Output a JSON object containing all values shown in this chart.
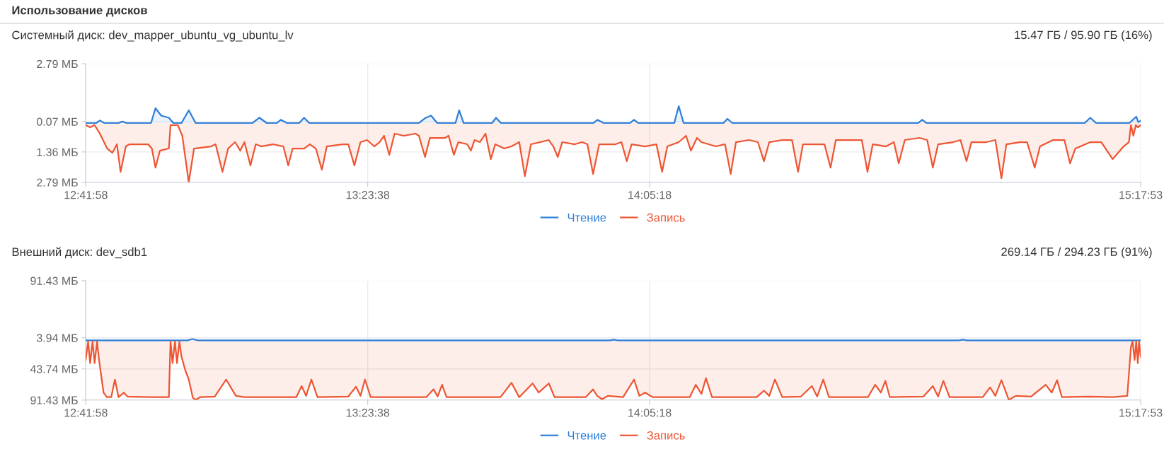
{
  "chart_data": [
    {
      "type": "area",
      "title": "Системный диск: dev_mapper_ubuntu_vg_ubuntu_lv",
      "subtitle": "15.47 ГБ / 95.90 ГБ (16%)",
      "annotations": [
        "Использование дисков"
      ],
      "xlim": [
        12.699,
        15.2981
      ],
      "xticks": [
        {
          "value": 12.6994,
          "label": "12:41:58"
        },
        {
          "value": 13.3939,
          "label": "13:23:38"
        },
        {
          "value": 14.0883,
          "label": "14:05:18"
        },
        {
          "value": 15.2981,
          "label": "15:17:53"
        }
      ],
      "ylim": [
        -2.79,
        2.79
      ],
      "yticks": [
        {
          "value": 2.79,
          "label": "2.79 МБ"
        },
        {
          "value": 0.07,
          "label": "0.07 МБ"
        },
        {
          "value": -1.36,
          "label": "1.36 МБ"
        },
        {
          "value": -2.79,
          "label": "2.79 МБ"
        }
      ],
      "grid": true,
      "legend": "bottom",
      "series": [
        {
          "name": "Чтение",
          "color": "#2f7ed8",
          "x": [
            12.699,
            12.725,
            12.734,
            12.745,
            12.78,
            12.789,
            12.8,
            12.86,
            12.871,
            12.885,
            12.904,
            12.915,
            12.935,
            12.953,
            12.97,
            13.11,
            13.127,
            13.145,
            13.17,
            13.18,
            13.195,
            13.225,
            13.237,
            13.25,
            13.52,
            13.537,
            13.55,
            13.565,
            13.61,
            13.619,
            13.63,
            13.7,
            13.71,
            13.722,
            13.95,
            13.96,
            13.975,
            14.04,
            14.05,
            14.06,
            14.149,
            14.16,
            14.172,
            14.27,
            14.28,
            14.292,
            14.75,
            14.76,
            14.77,
            15.16,
            15.174,
            15.188,
            15.27,
            15.287,
            15.292,
            15.298
          ],
          "values": [
            0,
            0,
            0.12,
            0,
            0,
            0.07,
            0,
            0,
            0.7,
            0.35,
            0.25,
            0,
            0,
            0.6,
            0,
            0,
            0.25,
            0,
            0,
            0.15,
            0,
            0,
            0.25,
            0,
            0,
            0.25,
            0.35,
            0,
            0,
            0.6,
            0,
            0,
            0.25,
            0,
            0,
            0.15,
            0,
            0,
            0.15,
            0,
            0,
            0.8,
            0,
            0,
            0.2,
            0,
            0,
            0.15,
            0,
            0,
            0.25,
            0,
            0,
            0.3,
            0.05,
            0.1
          ]
        },
        {
          "name": "Запись",
          "color": "#ee5533",
          "x": [
            12.699,
            12.71,
            12.721,
            12.734,
            12.752,
            12.765,
            12.776,
            12.785,
            12.798,
            12.807,
            12.853,
            12.862,
            12.871,
            12.882,
            12.904,
            12.908,
            12.926,
            12.937,
            12.953,
            12.966,
            13.008,
            13.019,
            13.036,
            13.05,
            13.067,
            13.08,
            13.09,
            13.105,
            13.118,
            13.131,
            13.16,
            13.186,
            13.198,
            13.209,
            13.237,
            13.251,
            13.266,
            13.281,
            13.293,
            13.332,
            13.346,
            13.361,
            13.376,
            13.392,
            13.41,
            13.423,
            13.434,
            13.447,
            13.46,
            13.483,
            13.511,
            13.52,
            13.535,
            13.547,
            13.584,
            13.593,
            13.606,
            13.617,
            13.639,
            13.648,
            13.657,
            13.67,
            13.684,
            13.697,
            13.708,
            13.73,
            13.748,
            13.767,
            13.781,
            13.796,
            13.84,
            13.851,
            13.862,
            13.873,
            13.904,
            13.922,
            13.935,
            13.949,
            13.964,
            14.004,
            14.019,
            14.032,
            14.044,
            14.077,
            14.105,
            14.119,
            14.132,
            14.16,
            14.178,
            14.19,
            14.205,
            14.216,
            14.251,
            14.274,
            14.288,
            14.301,
            14.333,
            14.355,
            14.37,
            14.383,
            14.415,
            14.439,
            14.454,
            14.466,
            14.498,
            14.519,
            14.534,
            14.547,
            14.579,
            14.611,
            14.625,
            14.638,
            14.671,
            14.69,
            14.702,
            14.717,
            14.753,
            14.772,
            14.786,
            14.799,
            14.836,
            14.854,
            14.869,
            14.881,
            14.918,
            14.94,
            14.955,
            14.967,
            15.0,
            15.018,
            15.037,
            15.05,
            15.082,
            15.11,
            15.124,
            15.137,
            15.174,
            15.201,
            15.229,
            15.256,
            15.269,
            15.274,
            15.28,
            15.286,
            15.291,
            15.298
          ],
          "values": [
            -0.1,
            -0.2,
            -0.1,
            -0.5,
            -1.2,
            -1.4,
            -1.0,
            -2.3,
            -1.1,
            -1.0,
            -1.0,
            -1.2,
            -2.1,
            -1.3,
            -1.2,
            -0.1,
            -0.1,
            -0.6,
            -2.79,
            -1.2,
            -1.1,
            -1.0,
            -2.3,
            -1.2,
            -0.9,
            -1.3,
            -0.9,
            -2.0,
            -1.0,
            -1.1,
            -1.0,
            -1.1,
            -2.0,
            -1.2,
            -1.2,
            -1.0,
            -1.2,
            -2.2,
            -1.1,
            -1.0,
            -1.0,
            -2.0,
            -0.9,
            -0.8,
            -1.1,
            -0.9,
            -0.6,
            -1.5,
            -0.5,
            -0.6,
            -0.5,
            -0.6,
            -1.6,
            -0.7,
            -0.7,
            -0.6,
            -1.5,
            -0.9,
            -1.0,
            -1.3,
            -0.8,
            -0.9,
            -0.5,
            -1.7,
            -1.0,
            -1.2,
            -1.1,
            -0.9,
            -2.5,
            -1.0,
            -0.8,
            -1.1,
            -1.6,
            -0.9,
            -1.0,
            -0.9,
            -1.0,
            -2.4,
            -1.0,
            -1.0,
            -0.9,
            -1.8,
            -1.0,
            -1.1,
            -1.0,
            -2.3,
            -1.1,
            -0.9,
            -0.6,
            -1.3,
            -0.7,
            -0.9,
            -1.1,
            -1.0,
            -2.4,
            -0.9,
            -0.8,
            -0.9,
            -1.8,
            -0.9,
            -0.8,
            -0.8,
            -2.3,
            -1.0,
            -1.0,
            -1.0,
            -2.1,
            -0.8,
            -0.8,
            -0.8,
            -2.3,
            -1.0,
            -1.1,
            -0.9,
            -1.9,
            -0.8,
            -0.7,
            -0.8,
            -2.1,
            -1.0,
            -0.9,
            -0.8,
            -1.8,
            -0.9,
            -0.9,
            -0.8,
            -2.6,
            -1.0,
            -0.9,
            -0.9,
            -2.1,
            -1.1,
            -0.8,
            -0.8,
            -1.9,
            -1.2,
            -0.9,
            -0.9,
            -1.7,
            -1.1,
            -0.9,
            -0.1,
            -0.6,
            -0.1,
            -0.2,
            -0.1
          ]
        }
      ]
    },
    {
      "type": "area",
      "title": "Внешний диск: dev_sdb1",
      "subtitle": "269.14 ГБ / 294.23 ГБ (91%)",
      "xlim": [
        12.699,
        15.2981
      ],
      "xticks": [
        {
          "value": 12.6994,
          "label": "12:41:58"
        },
        {
          "value": 13.3939,
          "label": "13:23:38"
        },
        {
          "value": 14.0883,
          "label": "14:05:18"
        },
        {
          "value": 15.2981,
          "label": "15:17:53"
        }
      ],
      "ylim": [
        -91.43,
        91.43
      ],
      "yticks": [
        {
          "value": 91.43,
          "label": "91.43 МБ"
        },
        {
          "value": 3.94,
          "label": "3.94 МБ"
        },
        {
          "value": -43.74,
          "label": "43.74 МБ"
        },
        {
          "value": -91.43,
          "label": "91.43 МБ"
        }
      ],
      "grid": true,
      "legend": "bottom",
      "series": [
        {
          "name": "Чтение",
          "color": "#2f7ed8",
          "x": [
            12.699,
            12.95,
            12.962,
            12.975,
            13.99,
            14.0,
            14.01,
            14.85,
            14.86,
            14.87,
            15.298
          ],
          "values": [
            0,
            0,
            2,
            0,
            0,
            1,
            0,
            0,
            1,
            0,
            0
          ]
        },
        {
          "name": "Запись",
          "color": "#ee5533",
          "x": [
            12.699,
            12.705,
            12.71,
            12.716,
            12.721,
            12.727,
            12.732,
            12.743,
            12.751,
            12.762,
            12.771,
            12.78,
            12.793,
            12.802,
            12.853,
            12.904,
            12.908,
            12.913,
            12.919,
            12.924,
            12.93,
            12.935,
            12.944,
            12.953,
            12.963,
            12.97,
            12.981,
            13.017,
            13.045,
            13.069,
            13.09,
            13.218,
            13.231,
            13.242,
            13.255,
            13.27,
            13.346,
            13.365,
            13.376,
            13.387,
            13.401,
            13.538,
            13.556,
            13.566,
            13.577,
            13.588,
            13.721,
            13.748,
            13.767,
            13.8,
            13.815,
            13.84,
            13.854,
            13.931,
            13.949,
            13.959,
            13.971,
            13.986,
            14.023,
            14.05,
            14.063,
            14.077,
            14.096,
            14.187,
            14.202,
            14.216,
            14.227,
            14.242,
            14.352,
            14.37,
            14.383,
            14.397,
            14.415,
            14.461,
            14.488,
            14.501,
            14.516,
            14.53,
            14.626,
            14.644,
            14.658,
            14.669,
            14.68,
            14.763,
            14.786,
            14.799,
            14.812,
            14.827,
            14.909,
            14.927,
            14.94,
            14.955,
            14.973,
            14.991,
            15.028,
            15.064,
            15.079,
            15.092,
            15.104,
            15.174,
            15.229,
            15.265,
            15.274,
            15.278,
            15.283,
            15.287,
            15.291,
            15.294,
            15.298
          ],
          "values": [
            -30,
            -2,
            -35,
            -2,
            -35,
            -2,
            -30,
            -80,
            -87,
            -87,
            -60,
            -87,
            -80,
            -86,
            -87,
            -87,
            -2,
            -35,
            -2,
            -35,
            -2,
            -25,
            -45,
            -60,
            -88,
            -91,
            -87,
            -86,
            -60,
            -85,
            -87,
            -87,
            -70,
            -85,
            -60,
            -87,
            -86,
            -71,
            -85,
            -60,
            -87,
            -87,
            -75,
            -86,
            -68,
            -87,
            -87,
            -65,
            -87,
            -66,
            -80,
            -66,
            -87,
            -87,
            -75,
            -85,
            -90,
            -85,
            -87,
            -60,
            -85,
            -80,
            -87,
            -87,
            -68,
            -82,
            -58,
            -87,
            -87,
            -77,
            -85,
            -60,
            -87,
            -86,
            -70,
            -86,
            -60,
            -87,
            -87,
            -68,
            -80,
            -62,
            -87,
            -86,
            -70,
            -86,
            -62,
            -87,
            -87,
            -72,
            -85,
            -61,
            -91,
            -85,
            -86,
            -68,
            -80,
            -61,
            -87,
            -86,
            -87,
            -85,
            -10,
            -2,
            -30,
            -2,
            -35,
            -2,
            -25
          ]
        }
      ]
    }
  ]
}
